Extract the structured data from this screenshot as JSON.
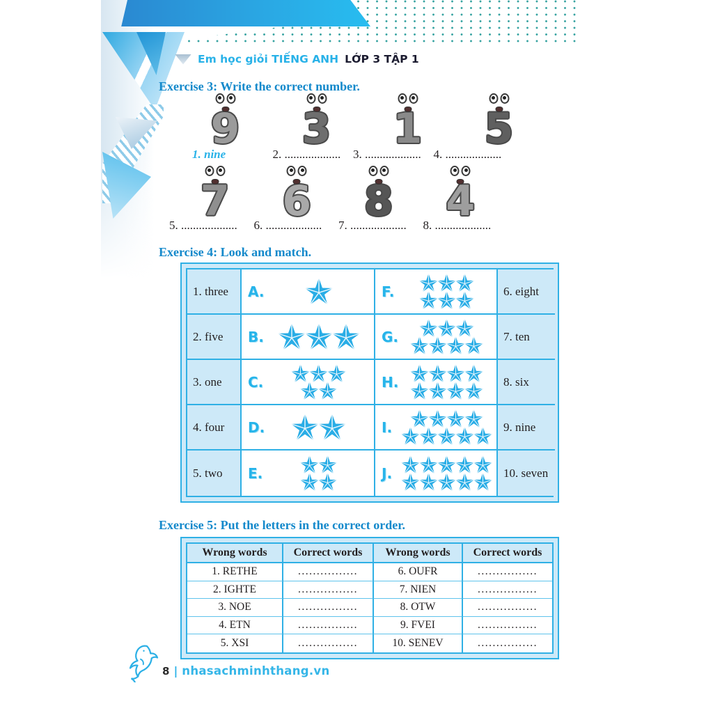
{
  "header": {
    "title_series": "Em học giỏi TIẾNG ANH",
    "title_grade": "LỚP 3 TẬP 1"
  },
  "exercise3": {
    "title": "Exercise 3: Write the correct number.",
    "rows": [
      {
        "numbers": [
          {
            "digit": "9",
            "shade": "#9b9b9b"
          },
          {
            "digit": "3",
            "shade": "#6e6e6e"
          },
          {
            "digit": "1",
            "shade": "#8a8a8a"
          },
          {
            "digit": "5",
            "shade": "#5f5f5f"
          }
        ],
        "labels": [
          {
            "text": "1. nine",
            "answered": true
          },
          {
            "text": "2. ...................",
            "answered": false
          },
          {
            "text": "3. ...................",
            "answered": false
          },
          {
            "text": "4. ...................",
            "answered": false
          }
        ]
      },
      {
        "numbers": [
          {
            "digit": "7",
            "shade": "#8f8f8f"
          },
          {
            "digit": "6",
            "shade": "#a9a9a9"
          },
          {
            "digit": "8",
            "shade": "#565656"
          },
          {
            "digit": "4",
            "shade": "#9e9e9e"
          }
        ],
        "labels": [
          {
            "text": "5. ...................",
            "answered": false
          },
          {
            "text": "6. ...................",
            "answered": false
          },
          {
            "text": "7. ...................",
            "answered": false
          },
          {
            "text": "8. ...................",
            "answered": false
          }
        ]
      }
    ]
  },
  "exercise4": {
    "title": "Exercise 4: Look and match.",
    "rows": [
      {
        "left": "1. three",
        "mid1": {
          "letter": "A.",
          "star_rows": [
            1
          ]
        },
        "mid2": {
          "letter": "F.",
          "star_rows": [
            3,
            3
          ]
        },
        "right": "6. eight"
      },
      {
        "left": "2. five",
        "mid1": {
          "letter": "B.",
          "star_rows": [
            3
          ]
        },
        "mid2": {
          "letter": "G.",
          "star_rows": [
            3,
            4
          ]
        },
        "right": "7. ten"
      },
      {
        "left": "3. one",
        "mid1": {
          "letter": "C.",
          "star_rows": [
            3,
            2
          ]
        },
        "mid2": {
          "letter": "H.",
          "star_rows": [
            4,
            4
          ]
        },
        "right": "8. six"
      },
      {
        "left": "4. four",
        "mid1": {
          "letter": "D.",
          "star_rows": [
            2
          ]
        },
        "mid2": {
          "letter": "I.",
          "star_rows": [
            4,
            5
          ]
        },
        "right": "9. nine"
      },
      {
        "left": "5. two",
        "mid1": {
          "letter": "E.",
          "star_rows": [
            2,
            2
          ]
        },
        "mid2": {
          "letter": "J.",
          "star_rows": [
            5,
            5
          ]
        },
        "right": "10. seven"
      }
    ]
  },
  "exercise5": {
    "title": "Exercise 5: Put the letters in the correct order.",
    "headers": [
      "Wrong words",
      "Correct words",
      "Wrong words",
      "Correct words"
    ],
    "rows": [
      [
        "1. RETHE",
        "................",
        "6. OUFR",
        "................"
      ],
      [
        "2. IGHTE",
        "................",
        "7. NIEN",
        "................"
      ],
      [
        "3. NOE",
        "................",
        "8. OTW",
        "................"
      ],
      [
        "4. ETN",
        "................",
        "9. FVEI",
        "................"
      ],
      [
        "5. XSI",
        "................",
        "10. SENEV",
        "................"
      ]
    ]
  },
  "footer": {
    "page_number": "8",
    "separator": "|",
    "website": "nhasachminhthang.vn"
  },
  "colors": {
    "accent_cyan": "#29abe2",
    "heading_blue": "#1489cb",
    "star_cyan": "#29ade6",
    "table_frame_bg": "#cde9f8",
    "dot_teal": "#35a2a0",
    "band_blue_left": "#2a85cf",
    "band_blue_right": "#28bdf0",
    "text_dark": "#231f20",
    "answer_cyan": "#29b2e8"
  }
}
